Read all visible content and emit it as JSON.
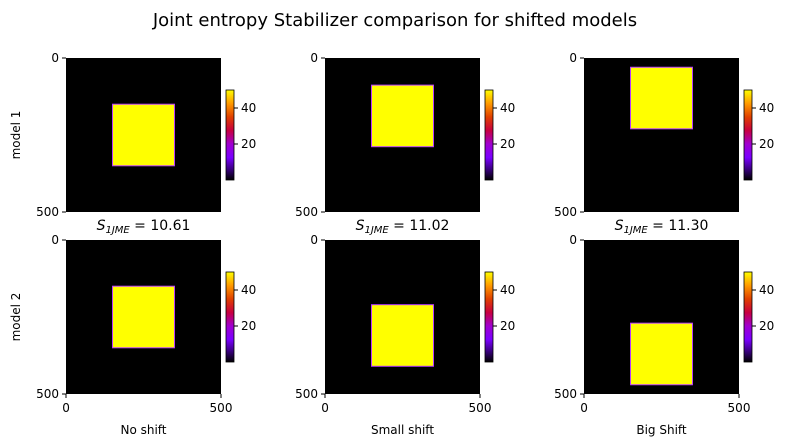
{
  "figure": {
    "title": "Joint entropy Stabilizer comparison for shifted models"
  },
  "chart_data": {
    "type": "heatmap",
    "title": "Joint entropy Stabilizer comparison for shifted models",
    "row_labels": [
      "model 1",
      "model 2"
    ],
    "column_labels": [
      "No shift",
      "Small shift",
      "Big Shift"
    ],
    "extent": [
      0,
      500
    ],
    "x_ticks": [
      0,
      500
    ],
    "y_ticks": [
      0,
      500
    ],
    "colormap": "gnuplot",
    "background_value": 0,
    "square_value": 50,
    "colorbar": {
      "range": [
        0,
        50
      ],
      "ticks": [
        20,
        40
      ]
    },
    "colors": {
      "background": "#000000",
      "square": "#ffff00",
      "edge": "#b83cff"
    },
    "stats": [
      {
        "symbol": "S",
        "subscript": "1JME",
        "value_text": " = 10.61"
      },
      {
        "symbol": "S",
        "subscript": "1JME",
        "value_text": " = 11.02"
      },
      {
        "symbol": "S",
        "subscript": "1JME",
        "value_text": " = 11.30"
      }
    ],
    "panels": [
      {
        "row": 0,
        "col": 0,
        "square": {
          "x0": 150,
          "x1": 350,
          "y0": 150,
          "y1": 350
        }
      },
      {
        "row": 0,
        "col": 1,
        "square": {
          "x0": 150,
          "x1": 350,
          "y0": 88,
          "y1": 288
        }
      },
      {
        "row": 0,
        "col": 2,
        "square": {
          "x0": 150,
          "x1": 350,
          "y0": 30,
          "y1": 230
        }
      },
      {
        "row": 1,
        "col": 0,
        "square": {
          "x0": 150,
          "x1": 350,
          "y0": 150,
          "y1": 350
        }
      },
      {
        "row": 1,
        "col": 1,
        "square": {
          "x0": 150,
          "x1": 350,
          "y0": 210,
          "y1": 410
        }
      },
      {
        "row": 1,
        "col": 2,
        "square": {
          "x0": 150,
          "x1": 350,
          "y0": 270,
          "y1": 470
        }
      }
    ]
  }
}
